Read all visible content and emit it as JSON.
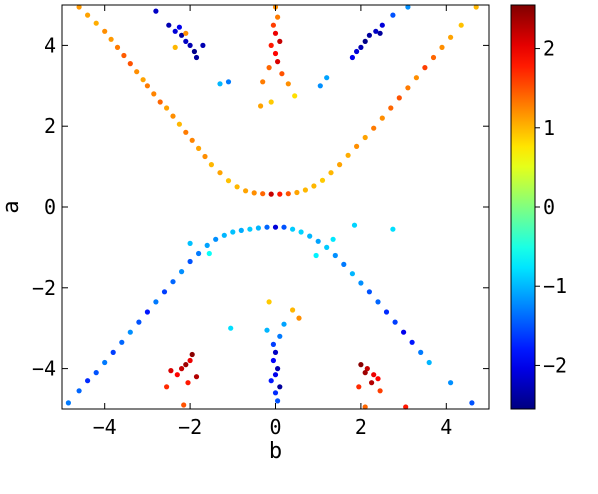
{
  "chart_data": {
    "type": "scatter",
    "title": "",
    "xlabel": "b",
    "ylabel": "a",
    "xlim": [
      -5,
      5
    ],
    "ylim": [
      -5,
      5
    ],
    "x_ticks": [
      -4,
      -2,
      0,
      2,
      4
    ],
    "y_ticks": [
      -4,
      -2,
      0,
      2,
      4
    ],
    "x_tick_labels": [
      "−4",
      "−2",
      "0",
      "2",
      "4"
    ],
    "y_tick_labels": [
      "−4",
      "−2",
      "0",
      "2",
      "4"
    ],
    "grid": false,
    "colorbar": {
      "colormap": "jet",
      "range": [
        -2.55,
        2.55
      ],
      "ticks": [
        -2,
        -1,
        0,
        1,
        2
      ],
      "tick_labels": [
        "−2",
        "−1",
        "0",
        "1",
        "2"
      ]
    },
    "series": [
      {
        "points": [
          [
            -4.6,
            4.95,
            1.15
          ],
          [
            -4.4,
            4.75,
            1.1
          ],
          [
            -4.2,
            4.55,
            1.05
          ],
          [
            -4.0,
            4.35,
            1.2
          ],
          [
            -3.85,
            4.15,
            1.15
          ],
          [
            -3.7,
            3.95,
            1.3
          ],
          [
            -3.55,
            3.75,
            1.45
          ],
          [
            -3.4,
            3.55,
            1.5
          ],
          [
            -3.25,
            3.35,
            1.2
          ],
          [
            -3.1,
            3.15,
            1.1
          ],
          [
            -3.0,
            3.0,
            1.3
          ],
          [
            -2.85,
            2.8,
            1.25
          ],
          [
            -2.7,
            2.6,
            1.4
          ],
          [
            -2.55,
            2.45,
            1.1
          ],
          [
            -2.4,
            2.25,
            1.2
          ],
          [
            -2.25,
            2.05,
            1.0
          ],
          [
            -2.1,
            1.85,
            1.3
          ],
          [
            -1.95,
            1.65,
            1.25
          ],
          [
            -1.8,
            1.45,
            1.1
          ],
          [
            -1.65,
            1.25,
            1.2
          ],
          [
            -1.5,
            1.05,
            1.0
          ],
          [
            -1.3,
            0.85,
            1.1
          ],
          [
            -1.1,
            0.65,
            0.95
          ],
          [
            -0.9,
            0.5,
            1.0
          ],
          [
            -0.7,
            0.4,
            1.1
          ],
          [
            -0.5,
            0.35,
            1.2
          ],
          [
            -0.3,
            0.33,
            1.4
          ],
          [
            -0.1,
            0.32,
            2.2
          ],
          [
            0.1,
            0.32,
            1.8
          ],
          [
            0.3,
            0.33,
            1.5
          ],
          [
            0.5,
            0.36,
            1.1
          ],
          [
            0.7,
            0.42,
            1.0
          ],
          [
            0.9,
            0.52,
            1.0
          ],
          [
            1.1,
            0.66,
            0.9
          ],
          [
            1.3,
            0.85,
            1.0
          ],
          [
            1.5,
            1.05,
            1.1
          ],
          [
            1.7,
            1.28,
            1.05
          ],
          [
            1.9,
            1.5,
            1.2
          ],
          [
            2.1,
            1.72,
            1.1
          ],
          [
            2.3,
            1.95,
            1.3
          ],
          [
            2.5,
            2.2,
            1.2
          ],
          [
            2.7,
            2.45,
            1.4
          ],
          [
            2.9,
            2.7,
            1.5
          ],
          [
            3.1,
            2.95,
            1.3
          ],
          [
            3.3,
            3.2,
            1.2
          ],
          [
            3.5,
            3.45,
            1.6
          ],
          [
            3.7,
            3.7,
            1.4
          ],
          [
            3.9,
            3.95,
            1.2
          ],
          [
            4.1,
            4.2,
            1.1
          ],
          [
            4.35,
            4.5,
            0.95
          ],
          [
            4.7,
            4.95,
            1.0
          ]
        ]
      },
      {
        "points": [
          [
            -4.85,
            -4.85,
            -1.3
          ],
          [
            -4.6,
            -4.55,
            -1.4
          ],
          [
            -4.4,
            -4.3,
            -1.7
          ],
          [
            -4.2,
            -4.1,
            -1.5
          ],
          [
            -4.0,
            -3.85,
            -1.3
          ],
          [
            -3.8,
            -3.6,
            -1.6
          ],
          [
            -3.6,
            -3.35,
            -1.4
          ],
          [
            -3.4,
            -3.1,
            -1.2
          ],
          [
            -3.2,
            -2.85,
            -1.5
          ],
          [
            -3.0,
            -2.6,
            -1.8
          ],
          [
            -2.8,
            -2.35,
            -1.3
          ],
          [
            -2.6,
            -2.1,
            -1.6
          ],
          [
            -2.4,
            -1.85,
            -1.4
          ],
          [
            -2.2,
            -1.6,
            -1.2
          ],
          [
            -2.0,
            -1.35,
            -1.5
          ],
          [
            -1.8,
            -1.15,
            -1.3
          ],
          [
            -1.6,
            -0.95,
            -1.1
          ],
          [
            -1.4,
            -0.8,
            -1.2
          ],
          [
            -1.2,
            -0.7,
            -1.0
          ],
          [
            -1.0,
            -0.62,
            -0.95
          ],
          [
            -0.8,
            -0.58,
            -1.05
          ],
          [
            -0.6,
            -0.55,
            -0.9
          ],
          [
            -0.4,
            -0.52,
            -1.0
          ],
          [
            -0.2,
            -0.5,
            -1.4
          ],
          [
            0.0,
            -0.5,
            -2.1
          ],
          [
            0.2,
            -0.5,
            -1.5
          ],
          [
            0.4,
            -0.55,
            -0.9
          ],
          [
            0.6,
            -0.62,
            -0.85
          ],
          [
            0.8,
            -0.72,
            -1.0
          ],
          [
            1.0,
            -0.85,
            -1.1
          ],
          [
            1.2,
            -1.0,
            -0.9
          ],
          [
            1.4,
            -1.2,
            -1.2
          ],
          [
            1.6,
            -1.42,
            -1.3
          ],
          [
            1.8,
            -1.65,
            -1.0
          ],
          [
            2.0,
            -1.88,
            -1.2
          ],
          [
            2.2,
            -2.1,
            -1.5
          ],
          [
            2.4,
            -2.35,
            -1.4
          ],
          [
            2.6,
            -2.6,
            -1.7
          ],
          [
            2.8,
            -2.85,
            -1.6
          ],
          [
            3.0,
            -3.1,
            -2.0
          ],
          [
            3.2,
            -3.35,
            -1.8
          ],
          [
            3.4,
            -3.6,
            -1.3
          ],
          [
            3.6,
            -3.85,
            -1.0
          ],
          [
            4.1,
            -4.35,
            -1.2
          ],
          [
            4.6,
            -4.85,
            -1.5
          ],
          [
            -1.05,
            -3.0,
            -0.8
          ],
          [
            0.95,
            -1.2,
            -0.7
          ],
          [
            1.35,
            -0.8,
            -0.75
          ]
        ]
      },
      {
        "points": [
          [
            -2.5,
            4.5,
            -2.3
          ],
          [
            -2.35,
            4.35,
            -2.1
          ],
          [
            -2.2,
            4.25,
            -2.4
          ],
          [
            -2.1,
            4.1,
            -2.2
          ],
          [
            -2.0,
            4.0,
            -2.3
          ],
          [
            -1.9,
            3.85,
            -2.5
          ],
          [
            -1.85,
            3.7,
            -2.4
          ],
          [
            -2.25,
            4.45,
            -2.0
          ],
          [
            -2.8,
            4.85,
            -2.2
          ],
          [
            -1.7,
            4.0,
            -2.3
          ],
          [
            2.5,
            4.5,
            -2.1
          ],
          [
            2.35,
            4.35,
            -2.2
          ],
          [
            2.2,
            4.25,
            -2.4
          ],
          [
            2.1,
            4.1,
            -2.5
          ],
          [
            2.0,
            3.95,
            -2.3
          ],
          [
            1.9,
            3.85,
            -2.1
          ],
          [
            1.8,
            3.7,
            -2.0
          ],
          [
            2.45,
            4.3,
            -2.4
          ],
          [
            2.75,
            4.75,
            -1.5
          ],
          [
            3.1,
            4.95,
            -1.2
          ]
        ]
      },
      {
        "points": [
          [
            -2.2,
            -4.0,
            2.2
          ],
          [
            -2.1,
            -3.9,
            2.4
          ],
          [
            -2.0,
            -3.8,
            2.0
          ],
          [
            -1.95,
            -3.65,
            2.5
          ],
          [
            -2.3,
            -4.15,
            1.9
          ],
          [
            -2.45,
            -4.05,
            2.1
          ],
          [
            -1.85,
            -4.2,
            2.3
          ],
          [
            -2.05,
            -4.35,
            1.8
          ],
          [
            -2.15,
            -4.9,
            1.5
          ],
          [
            -2.55,
            -4.45,
            1.7
          ],
          [
            2.0,
            -3.9,
            2.5
          ],
          [
            2.15,
            -4.0,
            2.2
          ],
          [
            2.3,
            -4.15,
            2.0
          ],
          [
            2.4,
            -4.25,
            1.9
          ],
          [
            2.25,
            -4.35,
            2.3
          ],
          [
            2.1,
            -4.1,
            2.4
          ],
          [
            1.95,
            -4.45,
            1.7
          ],
          [
            2.45,
            -4.55,
            1.6
          ],
          [
            2.1,
            -4.95,
            1.4
          ],
          [
            3.05,
            -4.95,
            1.8
          ]
        ]
      },
      {
        "points": [
          [
            0.0,
            4.95,
            1.2
          ],
          [
            0.05,
            4.7,
            1.3
          ],
          [
            -0.05,
            4.5,
            1.6
          ],
          [
            0.0,
            4.3,
            2.0
          ],
          [
            0.1,
            4.1,
            2.2
          ],
          [
            -0.1,
            4.0,
            1.8
          ],
          [
            0.0,
            3.8,
            1.9
          ],
          [
            0.05,
            3.6,
            2.1
          ],
          [
            -0.15,
            3.45,
            1.4
          ],
          [
            0.15,
            3.3,
            1.5
          ],
          [
            -0.3,
            3.1,
            1.3
          ],
          [
            0.3,
            3.05,
            1.2
          ],
          [
            -0.1,
            2.6,
            0.9
          ],
          [
            0.45,
            2.75,
            0.8
          ],
          [
            -0.35,
            2.5,
            1.1
          ]
        ]
      },
      {
        "points": [
          [
            0.0,
            -3.6,
            -2.2
          ],
          [
            -0.05,
            -3.8,
            -1.9
          ],
          [
            0.05,
            -4.0,
            -2.3
          ],
          [
            0.0,
            -4.15,
            -2.0
          ],
          [
            -0.1,
            -4.3,
            -1.8
          ],
          [
            0.1,
            -4.45,
            -2.4
          ],
          [
            0.0,
            -4.6,
            -1.7
          ],
          [
            0.05,
            -4.8,
            -1.5
          ],
          [
            -0.05,
            -3.4,
            -1.6
          ],
          [
            0.1,
            -3.2,
            -1.3
          ],
          [
            -0.2,
            -3.05,
            -1.0
          ],
          [
            0.2,
            -2.9,
            -1.1
          ],
          [
            0.4,
            -2.55,
            1.0
          ],
          [
            0.55,
            -2.75,
            1.2
          ],
          [
            -0.15,
            -2.35,
            0.9
          ]
        ]
      },
      {
        "points": [
          [
            -1.1,
            3.1,
            -1.3
          ],
          [
            -1.3,
            3.05,
            -1.0
          ],
          [
            1.2,
            3.2,
            -1.1
          ],
          [
            1.05,
            3.0,
            -1.2
          ],
          [
            -1.55,
            -1.15,
            -0.6
          ],
          [
            -2.0,
            -0.9,
            -0.95
          ],
          [
            1.85,
            -0.45,
            -0.85
          ],
          [
            2.75,
            -0.55,
            -0.8
          ],
          [
            -2.35,
            3.95,
            1.0
          ],
          [
            -2.1,
            4.3,
            1.2
          ]
        ]
      }
    ]
  }
}
